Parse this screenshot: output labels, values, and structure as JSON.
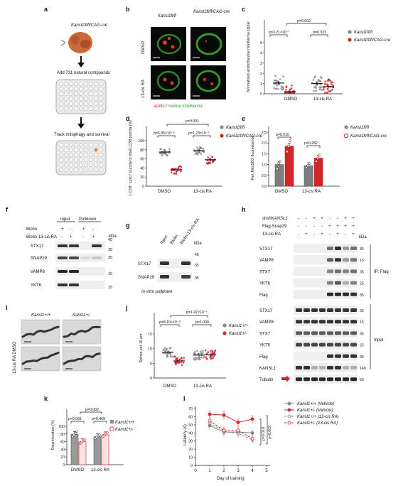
{
  "panels": {
    "a": {
      "letter": "a",
      "model": "Kansl1fl/fl/CAG-cre",
      "steps": [
        "Add 731 natural compounds",
        "Track mitophagy and survival"
      ]
    },
    "b": {
      "letter": "b",
      "col1": "Kansl1fl/fl",
      "col2": "Kansl1fl/fl/CAG-cre",
      "row1": "DMSO",
      "row2": "13-cis RA",
      "legend_acidic": "acidic",
      "legend_sep": " / ",
      "legend_neutral": "neutral",
      "legend_mito": " mitoKeima"
    },
    "c": {
      "letter": "c",
      "ylabel": "Normalized acidic/neutral mitoKeima signal",
      "p1": "p=3.21×10⁻⁷",
      "p2": "p=0.333",
      "p3": "p=0.002",
      "series": [
        "Kansl1fl/fl",
        "Kansl1fl/fl/CAG-cre"
      ],
      "x": [
        "DMSO",
        "13-cis RA"
      ],
      "yticks": [
        "0",
        "1",
        "2",
        "3",
        "4",
        "5"
      ]
    },
    "d": {
      "letter": "d",
      "ylabel": "LC3B⁺ Lyso⁺ puncta to total LC3B puncta (%)",
      "p1": "p=5.35×10⁻⁹",
      "p2": "p=1.23×10⁻⁵",
      "p3": "p=0.001",
      "series": [
        "Kansl1fl/fl",
        "Kansl1fl/fl/CAG-cre"
      ],
      "x": [
        "DMSO",
        "13-cis RA"
      ],
      "yticks": [
        "0",
        "20",
        "40",
        "60",
        "80",
        "100"
      ]
    },
    "e": {
      "letter": "e",
      "ylabel": "Rel. MitoSOX fluorescence",
      "p1": "p=0.010",
      "p2": "p=0.282",
      "series": [
        "Kansl1fl/fl",
        "Kansl1fl/fl/CAG-cre"
      ],
      "x": [
        "DMSO",
        "13-cis RA"
      ],
      "yticks": [
        "0.0",
        "0.5",
        "1.0",
        "1.5",
        "2.0",
        "2.5"
      ]
    },
    "f": {
      "letter": "f",
      "head_input": "Input",
      "head_pulldown": "Pulldown",
      "row_biotin": "Biotin",
      "row_biotin_ra": "Biotin-13-cis RA",
      "kda": "kDa",
      "proteins": [
        "STX17",
        "SNAP29",
        "VAMP8",
        "YKT6"
      ],
      "markers": [
        "45",
        "35",
        "35",
        "15",
        "25"
      ]
    },
    "g": {
      "letter": "g",
      "lanes": [
        "Input",
        "Biotin",
        "Biotin-13-cis RA"
      ],
      "kda": "kDa",
      "proteins": [
        "STX17",
        "SNAP29"
      ],
      "markers": [
        "45",
        "35",
        "35"
      ],
      "caption": "In vitro pulldown"
    },
    "h": {
      "letter": "h",
      "rows": [
        "shKANSL1",
        "Flag-Snap29",
        "13-cis RA"
      ],
      "kda": "kDa",
      "ip_label": "IP: Flag",
      "input_label": "Input",
      "ip_proteins": [
        "STX17",
        "VAMP8",
        "STX7",
        "YKT6",
        "Flag"
      ],
      "input_proteins": [
        "STX17",
        "VAMP8",
        "STX7",
        "YKT6",
        "Flag",
        "KANSL1",
        "Tubulin"
      ],
      "markers": [
        "35",
        "15",
        "35",
        "25",
        "35",
        "35",
        "15",
        "35",
        "25",
        "35",
        "140",
        "60"
      ]
    },
    "i": {
      "letter": "i",
      "col1": "Kansl1+/+",
      "col2": "Kansl1+/-",
      "row_label": "13-cis RA  DMSO"
    },
    "j": {
      "letter": "j",
      "ylabel": "Spines per 10 μm",
      "p1": "p=8.10×10⁻¹¹",
      "p2": "p=1.000",
      "p3": "p=1.47×10⁻⁵",
      "series": [
        "Kansl1+/+",
        "Kansl1+/-"
      ],
      "x": [
        "DMSO",
        "13-cis RA"
      ],
      "yticks": [
        "0",
        "5",
        "10",
        "15"
      ]
    },
    "k": {
      "letter": "k",
      "ylabel": "Discrimination (%)",
      "p1": "p=0.001",
      "p2": "p=0.469",
      "p3": "p=0.002",
      "series": [
        "Kansl1+/+",
        "Kansl1+/-"
      ],
      "x": [
        "DMSO",
        "13-cis RA"
      ],
      "yticks": [
        "0",
        "20",
        "40",
        "60",
        "80",
        "100"
      ]
    },
    "l": {
      "letter": "l",
      "ylabel": "Latency (s)",
      "xlabel": "Day of training",
      "p1": "p=0.018",
      "p2": "p=0.002",
      "series": [
        "Kansl1+/+ (Vehicle)",
        "Kansl1+/- (Vehicle)",
        "Kansl1+/+ (13-cis RA)",
        "Kansl1+/- (13-cis RA)"
      ],
      "xticks": [
        "0",
        "1",
        "2",
        "3",
        "4",
        "5"
      ],
      "yticks": [
        "0",
        "10",
        "20",
        "30",
        "40",
        "50",
        "60",
        "70"
      ]
    }
  },
  "colors": {
    "grey": "#8a8a8a",
    "red": "#d0262b",
    "orange": "#f08a24"
  },
  "chart_data": [
    {
      "panel": "c",
      "type": "scatter",
      "ylim": [
        0,
        5
      ],
      "categories": [
        "DMSO",
        "13-cis RA"
      ],
      "series": [
        {
          "name": "Kansl1fl/fl",
          "values": [
            1.05,
            1.0
          ]
        },
        {
          "name": "Kansl1fl/fl/CAG-cre",
          "values": [
            0.2,
            0.7
          ]
        }
      ]
    },
    {
      "panel": "d",
      "type": "scatter",
      "ylim": [
        0,
        100
      ],
      "categories": [
        "DMSO",
        "13-cis RA"
      ],
      "series": [
        {
          "name": "Kansl1fl/fl",
          "values": [
            75,
            78
          ]
        },
        {
          "name": "Kansl1fl/fl/CAG-cre",
          "values": [
            36,
            58
          ]
        }
      ]
    },
    {
      "panel": "e",
      "type": "bar",
      "ylim": [
        0,
        2.5
      ],
      "categories": [
        "DMSO",
        "13-cis RA"
      ],
      "series": [
        {
          "name": "Kansl1fl/fl",
          "values": [
            1.0,
            0.95
          ],
          "points": [
            [
              0.8,
              1.05,
              1.15
            ],
            [
              0.85,
              0.95,
              1.05
            ]
          ]
        },
        {
          "name": "Kansl1fl/fl/CAG-cre",
          "values": [
            1.85,
            1.3
          ],
          "points": [
            [
              1.6,
              1.85,
              2.1
            ],
            [
              1.15,
              1.3,
              1.45
            ]
          ]
        }
      ]
    },
    {
      "panel": "j",
      "type": "scatter",
      "ylim": [
        0,
        15
      ],
      "categories": [
        "DMSO",
        "13-cis RA"
      ],
      "series": [
        {
          "name": "Kansl1+/+",
          "values": [
            8.8,
            7.8
          ]
        },
        {
          "name": "Kansl1+/-",
          "values": [
            5.8,
            7.9
          ]
        }
      ]
    },
    {
      "panel": "k",
      "type": "bar",
      "ylim": [
        0,
        100
      ],
      "categories": [
        "DMSO",
        "13-cis RA"
      ],
      "series": [
        {
          "name": "Kansl1+/+",
          "values": [
            79,
            73
          ],
          "points": [
            [
              73,
              78,
              82,
              86
            ],
            [
              68,
              72,
              75,
              78
            ]
          ]
        },
        {
          "name": "Kansl1+/-",
          "values": [
            60,
            78
          ],
          "points": [
            [
              55,
              59,
              62,
              65
            ],
            [
              73,
              77,
              80,
              84
            ]
          ]
        }
      ]
    },
    {
      "panel": "l",
      "type": "line",
      "ylim": [
        0,
        70
      ],
      "xlim": [
        0,
        5
      ],
      "x": [
        1,
        2,
        3,
        4
      ],
      "series": [
        {
          "name": "Kansl1+/+ (Vehicle)",
          "values": [
            49,
            41,
            41,
            40
          ]
        },
        {
          "name": "Kansl1+/- (Vehicle)",
          "values": [
            63,
            62,
            53,
            57
          ]
        },
        {
          "name": "Kansl1+/+ (13-cis RA)",
          "values": [
            52,
            42,
            39,
            32
          ]
        },
        {
          "name": "Kansl1+/- (13-cis RA)",
          "values": [
            55,
            43,
            43,
            33
          ]
        }
      ]
    }
  ]
}
